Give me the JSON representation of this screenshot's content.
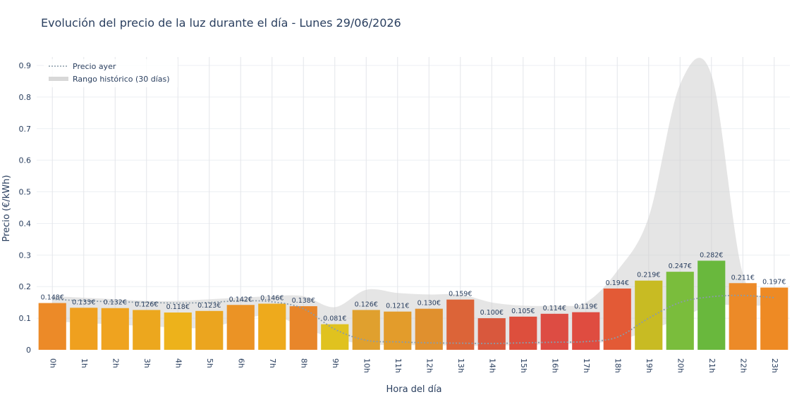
{
  "chart_data": {
    "type": "bar",
    "title": "Evolución del precio de la luz durante el día - Lunes 29/06/2026",
    "xlabel": "Hora del día",
    "ylabel": "Precio (€/kWh)",
    "ylim": [
      0,
      0.9
    ],
    "yticks": [
      0,
      0.1,
      0.2,
      0.3,
      0.4,
      0.5,
      0.6,
      0.7,
      0.8,
      0.9
    ],
    "ytick_labels": [
      "0",
      "0.1",
      "0.2",
      "0.3",
      "0.4",
      "0.5",
      "0.6",
      "0.7",
      "0.8",
      "0.9"
    ],
    "grid": true,
    "legend_position": "top-left",
    "categories": [
      "0h",
      "1h",
      "2h",
      "3h",
      "4h",
      "5h",
      "6h",
      "7h",
      "8h",
      "9h",
      "10h",
      "11h",
      "12h",
      "13h",
      "14h",
      "15h",
      "16h",
      "17h",
      "18h",
      "19h",
      "20h",
      "21h",
      "22h",
      "23h"
    ],
    "values": [
      0.148,
      0.133,
      0.132,
      0.126,
      0.118,
      0.123,
      0.142,
      0.146,
      0.138,
      0.081,
      0.126,
      0.121,
      0.13,
      0.159,
      0.1,
      0.105,
      0.114,
      0.119,
      0.194,
      0.219,
      0.247,
      0.282,
      0.211,
      0.197
    ],
    "data_labels": [
      "0.148€",
      "0.133€",
      "0.132€",
      "0.126€",
      "0.118€",
      "0.123€",
      "0.142€",
      "0.146€",
      "0.138€",
      "0.081€",
      "0.126€",
      "0.121€",
      "0.130€",
      "0.159€",
      "0.100€",
      "0.105€",
      "0.114€",
      "0.119€",
      "0.194€",
      "0.219€",
      "0.247€",
      "0.282€",
      "0.211€",
      "0.197€"
    ],
    "bar_colors": [
      "#ec8a28",
      "#efa01f",
      "#efa31f",
      "#eca71e",
      "#edb21b",
      "#eba51f",
      "#eb9325",
      "#eeaa1c",
      "#e8862a",
      "#e0c21f",
      "#e0a02e",
      "#e39c2b",
      "#e0902e",
      "#dc6438",
      "#d9583d",
      "#dd4f3d",
      "#dd4c43",
      "#df4c40",
      "#e35a36",
      "#c8bb23",
      "#7abd3c",
      "#69b83d",
      "#ec8a28",
      "#ee8a24"
    ],
    "series": [
      {
        "name": "Precio ayer",
        "type": "line",
        "style": "dotted",
        "color": "#8a9ba8",
        "values": [
          0.16,
          0.155,
          0.152,
          0.15,
          0.148,
          0.15,
          0.155,
          0.152,
          0.13,
          0.065,
          0.03,
          0.025,
          0.022,
          0.021,
          0.02,
          0.022,
          0.024,
          0.026,
          0.04,
          0.1,
          0.15,
          0.168,
          0.172,
          0.165
        ]
      },
      {
        "name": "Rango histórico (30 días)",
        "type": "band",
        "color": "#d0d0d0",
        "lower": [
          0.09,
          0.085,
          0.08,
          0.075,
          0.07,
          0.07,
          0.095,
          0.11,
          0.07,
          0.035,
          0.018,
          0.015,
          0.015,
          0.013,
          0.013,
          0.015,
          0.018,
          0.02,
          0.03,
          0.06,
          0.1,
          0.14,
          0.14,
          0.14
        ],
        "upper": [
          0.17,
          0.165,
          0.16,
          0.155,
          0.155,
          0.16,
          0.165,
          0.17,
          0.17,
          0.135,
          0.19,
          0.18,
          0.175,
          0.175,
          0.15,
          0.14,
          0.14,
          0.15,
          0.25,
          0.42,
          0.84,
          0.87,
          0.24,
          0.18
        ]
      }
    ]
  }
}
